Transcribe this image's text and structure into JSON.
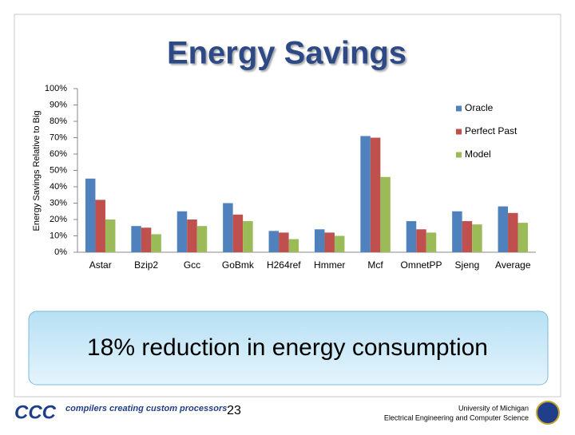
{
  "chart_data": {
    "type": "bar",
    "title": "Energy Savings",
    "ylabel": "Energy Savings Relative to Big",
    "categories": [
      "Astar",
      "Bzip2",
      "Gcc",
      "GoBmk",
      "H264ref",
      "Hmmer",
      "Mcf",
      "OmnetPP",
      "Sjeng",
      "Average"
    ],
    "series": [
      {
        "name": "Oracle",
        "color": "#4f81bd",
        "values": [
          45,
          16,
          25,
          30,
          13,
          14,
          71,
          19,
          25,
          28
        ]
      },
      {
        "name": "Perfect Past",
        "color": "#c0504d",
        "values": [
          32,
          15,
          20,
          23,
          12,
          12,
          70,
          14,
          19,
          24
        ]
      },
      {
        "name": "Model",
        "color": "#9bbb59",
        "values": [
          20,
          11,
          16,
          19,
          8,
          10,
          46,
          12,
          17,
          18
        ]
      }
    ],
    "ylim": [
      0,
      100
    ],
    "yticks": [
      {
        "value": 0,
        "label": "0%"
      },
      {
        "value": 10,
        "label": "10%"
      },
      {
        "value": 20,
        "label": "20%"
      },
      {
        "value": 30,
        "label": "30%"
      },
      {
        "value": 40,
        "label": "40%"
      },
      {
        "value": 50,
        "label": "50%"
      },
      {
        "value": 60,
        "label": "60%"
      },
      {
        "value": 70,
        "label": "70%"
      },
      {
        "value": 80,
        "label": "80%"
      },
      {
        "value": 90,
        "label": "90%"
      },
      {
        "value": 100,
        "label": "100%"
      }
    ],
    "grid": false,
    "legend": "upper right"
  },
  "callout": "18% reduction in energy consumption",
  "footer": {
    "logo": "CCC",
    "tagline": "compilers creating custom processors",
    "page_number": "23",
    "university": "University of Michigan",
    "department": "Electrical Engineering and Computer Science"
  }
}
